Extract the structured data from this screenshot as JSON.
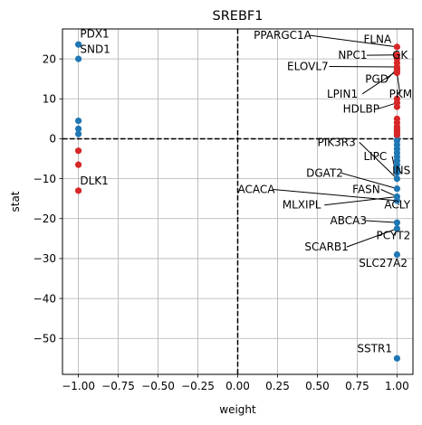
{
  "chart_data": {
    "type": "scatter",
    "title": "SREBF1",
    "xlabel": "weight",
    "ylabel": "stat",
    "xlim": [
      -1.1,
      1.1
    ],
    "ylim": [
      -59,
      27.5
    ],
    "xticks": [
      -1.0,
      -0.75,
      -0.5,
      -0.25,
      0.0,
      0.25,
      0.5,
      0.75,
      1.0
    ],
    "xtick_labels": [
      "−1.00",
      "−0.75",
      "−0.50",
      "−0.25",
      "0.00",
      "0.25",
      "0.50",
      "0.75",
      "1.00"
    ],
    "yticks": [
      -50,
      -40,
      -30,
      -20,
      -10,
      0,
      10,
      20
    ],
    "ytick_labels": [
      "−50",
      "−40",
      "−30",
      "−20",
      "−10",
      "0",
      "10",
      "20"
    ],
    "grid": true,
    "reference_lines": {
      "x": 0,
      "y": 0,
      "style": "dashed"
    },
    "colors": {
      "positive": "#d62728",
      "negative": "#1f77b4"
    },
    "series": [
      {
        "color": "#1f77b4",
        "points": [
          {
            "x": -1,
            "y": 23.6
          },
          {
            "x": -1,
            "y": 20.0
          },
          {
            "x": -1,
            "y": 4.5
          },
          {
            "x": -1,
            "y": 2.5
          },
          {
            "x": -1,
            "y": 1.2
          },
          {
            "x": 1,
            "y": 0.8
          },
          {
            "x": 1,
            "y": -0.5
          },
          {
            "x": 1,
            "y": -1.5
          },
          {
            "x": 1,
            "y": -2.5
          },
          {
            "x": 1,
            "y": -3.5
          },
          {
            "x": 1,
            "y": -4.5
          },
          {
            "x": 1,
            "y": -5.5
          },
          {
            "x": 1,
            "y": -6.5
          },
          {
            "x": 1,
            "y": -7.5
          },
          {
            "x": 1,
            "y": -8.5
          },
          {
            "x": 1,
            "y": -10.0
          },
          {
            "x": 1,
            "y": -12.5
          },
          {
            "x": 1,
            "y": -14.5
          },
          {
            "x": 1,
            "y": -15.5
          },
          {
            "x": 1,
            "y": -21.0
          },
          {
            "x": 1,
            "y": -22.5
          },
          {
            "x": 1,
            "y": -29.0
          },
          {
            "x": 1,
            "y": -55.0
          }
        ]
      },
      {
        "color": "#d62728",
        "points": [
          {
            "x": -1,
            "y": -3.0
          },
          {
            "x": -1,
            "y": -6.5
          },
          {
            "x": -1,
            "y": -13.0
          },
          {
            "x": 1,
            "y": 23.0
          },
          {
            "x": 1,
            "y": 21.0
          },
          {
            "x": 1,
            "y": 20.0
          },
          {
            "x": 1,
            "y": 19.0
          },
          {
            "x": 1,
            "y": 18.0
          },
          {
            "x": 1,
            "y": 17.5
          },
          {
            "x": 1,
            "y": 17.0
          },
          {
            "x": 1,
            "y": 16.5
          },
          {
            "x": 1,
            "y": 10.0
          },
          {
            "x": 1,
            "y": 9.0
          },
          {
            "x": 1,
            "y": 8.0
          },
          {
            "x": 1,
            "y": 5.0
          },
          {
            "x": 1,
            "y": 4.0
          },
          {
            "x": 1,
            "y": 3.0
          },
          {
            "x": 1,
            "y": 2.5
          },
          {
            "x": 1,
            "y": 2.0
          },
          {
            "x": 1,
            "y": 1.5
          },
          {
            "x": 1,
            "y": 1.0
          }
        ]
      }
    ],
    "annotations": [
      {
        "label": "PDX1",
        "x": -1,
        "y": 23.6,
        "text_x": -0.99,
        "text_y": 25.3,
        "align": "start",
        "arrow": false
      },
      {
        "label": "SND1",
        "x": -1,
        "y": 20.0,
        "text_x": -0.99,
        "text_y": 21.5,
        "align": "start",
        "arrow": false
      },
      {
        "label": "DLK1",
        "x": -1,
        "y": -13.0,
        "text_x": -0.99,
        "text_y": -11.5,
        "align": "start",
        "arrow": false
      },
      {
        "label": "PPARGC1A",
        "x": 1,
        "y": 23.0,
        "text_x": 0.1,
        "text_y": 25.0,
        "align": "start",
        "arrow": true
      },
      {
        "label": "FLNA",
        "x": 1,
        "y": 23.0,
        "text_x": 0.79,
        "text_y": 24.0,
        "align": "start",
        "arrow": false
      },
      {
        "label": "NPC1",
        "x": 1,
        "y": 21.0,
        "text_x": 0.63,
        "text_y": 20.0,
        "align": "start",
        "arrow": true
      },
      {
        "label": "GK",
        "x": 1,
        "y": 20.0,
        "text_x": 0.97,
        "text_y": 20.0,
        "align": "start",
        "arrow": false
      },
      {
        "label": "ELOVL7",
        "x": 1,
        "y": 18.0,
        "text_x": 0.31,
        "text_y": 17.2,
        "align": "start",
        "arrow": true
      },
      {
        "label": "PGD",
        "x": 1,
        "y": 17.5,
        "text_x": 0.8,
        "text_y": 14.0,
        "align": "start",
        "arrow": true
      },
      {
        "label": "LPIN1",
        "x": 1,
        "y": 17.0,
        "text_x": 0.56,
        "text_y": 10.3,
        "align": "start",
        "arrow": true
      },
      {
        "label": "PKM",
        "x": 1,
        "y": 16.5,
        "text_x": 0.95,
        "text_y": 10.3,
        "align": "start",
        "arrow": true
      },
      {
        "label": "HDLBP",
        "x": 1,
        "y": 9.0,
        "text_x": 0.66,
        "text_y": 6.6,
        "align": "start",
        "arrow": true
      },
      {
        "label": "PIK3R3",
        "x": 1,
        "y": -10.0,
        "text_x": 0.5,
        "text_y": -1.8,
        "align": "start",
        "arrow": true
      },
      {
        "label": "LIPC",
        "x": 1,
        "y": -10.0,
        "text_x": 0.79,
        "text_y": -5.3,
        "align": "start",
        "arrow": true
      },
      {
        "label": "INS",
        "x": 1,
        "y": -10.0,
        "text_x": 0.97,
        "text_y": -8.8,
        "align": "start",
        "arrow": false
      },
      {
        "label": "DGAT2",
        "x": 1,
        "y": -12.5,
        "text_x": 0.43,
        "text_y": -9.5,
        "align": "start",
        "arrow": true
      },
      {
        "label": "FASN",
        "x": 1,
        "y": -14.5,
        "text_x": 0.72,
        "text_y": -13.6,
        "align": "start",
        "arrow": true
      },
      {
        "label": "ACACA",
        "x": 1,
        "y": -15.5,
        "text_x": 0.0,
        "text_y": -13.6,
        "align": "start",
        "arrow": true
      },
      {
        "label": "MLXIPL",
        "x": 1,
        "y": -14.5,
        "text_x": 0.28,
        "text_y": -17.5,
        "align": "start",
        "arrow": true
      },
      {
        "label": "ACLY",
        "x": 1,
        "y": -15.5,
        "text_x": 0.92,
        "text_y": -17.5,
        "align": "start",
        "arrow": true
      },
      {
        "label": "ABCA3",
        "x": 1,
        "y": -21.0,
        "text_x": 0.58,
        "text_y": -21.4,
        "align": "start",
        "arrow": true
      },
      {
        "label": "PCYT2",
        "x": 1,
        "y": -22.5,
        "text_x": 0.87,
        "text_y": -25.2,
        "align": "start",
        "arrow": true
      },
      {
        "label": "SCARB1",
        "x": 1,
        "y": -22.5,
        "text_x": 0.42,
        "text_y": -28.0,
        "align": "start",
        "arrow": true
      },
      {
        "label": "SLC27A2",
        "x": 1,
        "y": -29.0,
        "text_x": 0.76,
        "text_y": -32.0,
        "align": "start",
        "arrow": false
      },
      {
        "label": "SSTR1",
        "x": 1,
        "y": -55.0,
        "text_x": 0.75,
        "text_y": -53.5,
        "align": "start",
        "arrow": false
      }
    ]
  }
}
